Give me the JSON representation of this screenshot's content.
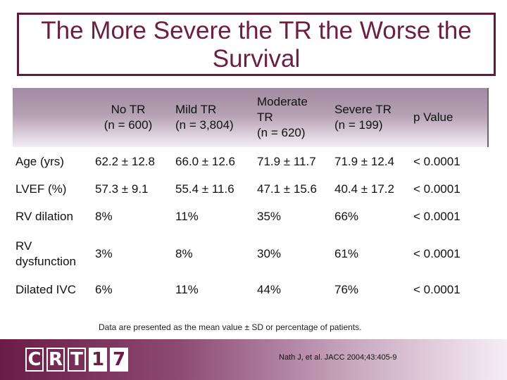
{
  "title": {
    "line1": "The More Severe the TR the Worse the",
    "line2": "Survival"
  },
  "table": {
    "headers": [
      {
        "lines": [
          ""
        ]
      },
      {
        "lines": [
          "No TR",
          "(n = 600)"
        ]
      },
      {
        "lines": [
          "Mild TR",
          "(n = 3,804)"
        ]
      },
      {
        "lines": [
          "Moderate",
          "TR",
          "(n = 620)"
        ]
      },
      {
        "lines": [
          "Severe TR",
          "(n = 199)"
        ]
      },
      {
        "lines": [
          "p Value"
        ]
      }
    ],
    "rows": [
      {
        "label": "Age (yrs)",
        "values": [
          "62.2 ± 12.8",
          "66.0 ± 12.6",
          "71.9 ± 11.7",
          "71.9 ± 12.4",
          "< 0.0001"
        ]
      },
      {
        "label": "LVEF (%)",
        "values": [
          "57.3 ± 9.1",
          "55.4 ± 11.6",
          "47.1 ± 15.6",
          "40.4 ± 17.2",
          "< 0.0001"
        ]
      },
      {
        "label": "RV dilation",
        "values": [
          "8%",
          "11%",
          "35%",
          "66%",
          "< 0.0001"
        ]
      },
      {
        "label": "RV dysfunction",
        "values": [
          "3%",
          "8%",
          "30%",
          "61%",
          "< 0.0001"
        ]
      },
      {
        "label": "Dilated IVC",
        "values": [
          "6%",
          "11%",
          "44%",
          "76%",
          "< 0.0001"
        ]
      }
    ]
  },
  "footnote": "Data are presented as the mean value ± SD or percentage of patients.",
  "citation": "Nath J, et al.  JACC 2004;43:405-9",
  "logo": {
    "letters": [
      "C",
      "R",
      "T",
      "1",
      "7"
    ]
  },
  "colors": {
    "accent": "#6b1f42",
    "header_bg": "#b4a0b3"
  }
}
